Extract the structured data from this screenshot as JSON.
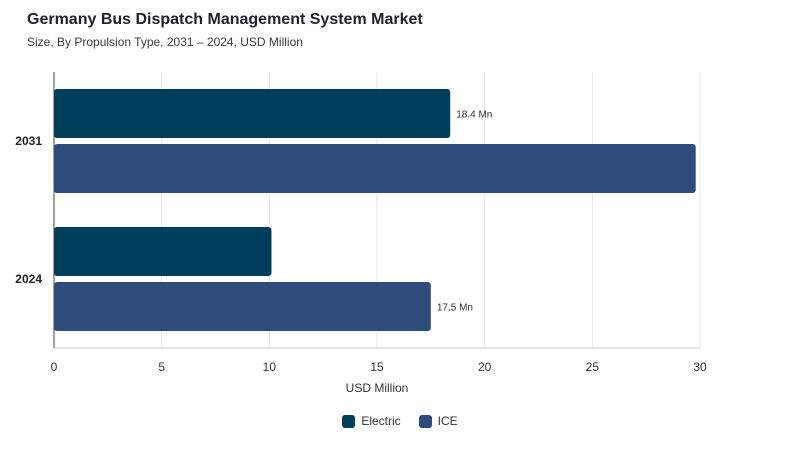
{
  "chart_data": {
    "type": "bar",
    "orientation": "horizontal",
    "title": "Germany Bus Dispatch Management System Market",
    "subtitle": "Size, By Propulsion Type, 2031 – 2024, USD Million",
    "xlabel": "USD Million",
    "ylabel": "",
    "xlim": [
      0,
      30
    ],
    "xticks": [
      0,
      5,
      10,
      15,
      20,
      25,
      30
    ],
    "grid": true,
    "legend_position": "bottom",
    "categories": [
      "2031",
      "2024"
    ],
    "series": [
      {
        "name": "Electric",
        "color": "#003f5c",
        "values": [
          18.4,
          10.1
        ],
        "data_labels": [
          "18.4 Mn",
          null
        ]
      },
      {
        "name": "ICE",
        "color": "#2f4b7c",
        "values": [
          29.8,
          17.5
        ],
        "data_labels": [
          null,
          "17.5 Mn"
        ]
      }
    ]
  }
}
